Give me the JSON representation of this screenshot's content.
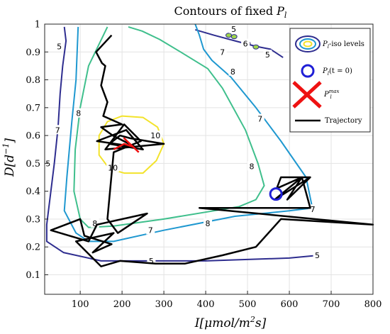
{
  "chart_data": {
    "type": "line",
    "title": "Contours of fixed P_l",
    "title_parts": {
      "prefix": "Contours of fixed ",
      "symbol": "P",
      "subscript": "l"
    },
    "xlabel": "I[μmol/m²s]",
    "xlabel_parts": {
      "main": "I[μmol/m",
      "sup": "2",
      "tail": "s]"
    },
    "ylabel": "D[d⁻¹]",
    "ylabel_parts": {
      "main": "D[d",
      "sup": "−1",
      "tail": "]"
    },
    "xlim": [
      15,
      800
    ],
    "ylim": [
      0.03,
      1.0
    ],
    "grid": true,
    "legend_position": "top-right",
    "x_ticks": [
      100,
      200,
      300,
      400,
      500,
      600,
      700,
      800
    ],
    "y_ticks": [
      0.1,
      0.2,
      0.3,
      0.4,
      0.5,
      0.6,
      0.7,
      0.8,
      0.9,
      1
    ],
    "x_tick_labels": [
      "100",
      "200",
      "300",
      "400",
      "500",
      "600",
      "700",
      "800"
    ],
    "y_tick_labels": [
      "0.1",
      "0.2",
      "0.3",
      "0.4",
      "0.5",
      "0.6",
      "0.7",
      "0.8",
      "0.9",
      "1"
    ],
    "contours": [
      {
        "level": 5,
        "color": "#2e2d8f",
        "points": [
          [
            62,
            0.99
          ],
          [
            66,
            0.94
          ],
          [
            58,
            0.85
          ],
          [
            52,
            0.75
          ],
          [
            47,
            0.63
          ],
          [
            38,
            0.5
          ],
          [
            20,
            0.28
          ],
          [
            20,
            0.22
          ],
          [
            60,
            0.18
          ],
          [
            150,
            0.15
          ],
          [
            400,
            0.15
          ],
          [
            500,
            0.155
          ],
          [
            600,
            0.16
          ],
          [
            670,
            0.17
          ]
        ]
      },
      {
        "level": 5,
        "color": "#2e2d8f",
        "points": [
          [
            375,
            0.98
          ],
          [
            420,
            0.96
          ],
          [
            470,
            0.94
          ],
          [
            520,
            0.92
          ],
          [
            555,
            0.91
          ],
          [
            585,
            0.88
          ]
        ]
      },
      {
        "level": 7,
        "color": "#1f98d0",
        "points": [
          [
            95,
            0.99
          ],
          [
            90,
            0.8
          ],
          [
            80,
            0.65
          ],
          [
            68,
            0.45
          ],
          [
            62,
            0.33
          ],
          [
            90,
            0.25
          ],
          [
            120,
            0.22
          ],
          [
            180,
            0.22
          ],
          [
            300,
            0.26
          ],
          [
            470,
            0.31
          ],
          [
            600,
            0.33
          ],
          [
            655,
            0.34
          ],
          [
            640,
            0.45
          ],
          [
            580,
            0.58
          ],
          [
            520,
            0.7
          ],
          [
            460,
            0.81
          ],
          [
            415,
            0.87
          ],
          [
            395,
            0.91
          ],
          [
            385,
            0.96
          ],
          [
            375,
            1.0
          ]
        ]
      },
      {
        "level": 8,
        "color": "#3fbf8c",
        "points": [
          [
            165,
            0.99
          ],
          [
            120,
            0.85
          ],
          [
            100,
            0.7
          ],
          [
            88,
            0.55
          ],
          [
            85,
            0.4
          ],
          [
            100,
            0.3
          ],
          [
            120,
            0.27
          ],
          [
            180,
            0.275
          ],
          [
            300,
            0.3
          ],
          [
            480,
            0.345
          ],
          [
            520,
            0.37
          ],
          [
            540,
            0.42
          ],
          [
            525,
            0.5
          ],
          [
            495,
            0.62
          ],
          [
            440,
            0.77
          ],
          [
            405,
            0.84
          ],
          [
            340,
            0.9
          ],
          [
            290,
            0.945
          ],
          [
            248,
            0.975
          ],
          [
            215,
            0.99
          ]
        ]
      },
      {
        "level": 10,
        "color": "#f3e32b",
        "points": [
          [
            200,
            0.67
          ],
          [
            250,
            0.665
          ],
          [
            285,
            0.63
          ],
          [
            300,
            0.57
          ],
          [
            282,
            0.51
          ],
          [
            250,
            0.465
          ],
          [
            205,
            0.465
          ],
          [
            170,
            0.48
          ],
          [
            145,
            0.53
          ],
          [
            145,
            0.6
          ],
          [
            165,
            0.65
          ],
          [
            200,
            0.67
          ]
        ]
      }
    ],
    "contour_labels": [
      {
        "text": "5",
        "x": 50,
        "y": 0.92
      },
      {
        "text": "5",
        "x": 23,
        "y": 0.5
      },
      {
        "text": "5",
        "x": 270,
        "y": 0.15
      },
      {
        "text": "5",
        "x": 667,
        "y": 0.17
      },
      {
        "text": "5",
        "x": 467,
        "y": 0.982
      },
      {
        "text": "5",
        "x": 548,
        "y": 0.89
      },
      {
        "text": "6",
        "x": 495,
        "y": 0.93
      },
      {
        "text": "7",
        "x": 46,
        "y": 0.62
      },
      {
        "text": "7",
        "x": 268,
        "y": 0.26
      },
      {
        "text": "7",
        "x": 440,
        "y": 0.9
      },
      {
        "text": "7",
        "x": 656,
        "y": 0.335
      },
      {
        "text": "7",
        "x": 530,
        "y": 0.66
      },
      {
        "text": "8",
        "x": 96,
        "y": 0.68
      },
      {
        "text": "8",
        "x": 405,
        "y": 0.285
      },
      {
        "text": "8",
        "x": 465,
        "y": 0.83
      },
      {
        "text": "8",
        "x": 135,
        "y": 0.285
      },
      {
        "text": "8",
        "x": 510,
        "y": 0.49
      },
      {
        "text": "10",
        "x": 280,
        "y": 0.6
      },
      {
        "text": "10",
        "x": 178,
        "y": 0.485
      }
    ],
    "trajectory": [
      [
        175,
        0.96
      ],
      [
        138,
        0.9
      ],
      [
        152,
        0.86
      ],
      [
        160,
        0.85
      ],
      [
        150,
        0.78
      ],
      [
        165,
        0.72
      ],
      [
        155,
        0.67
      ],
      [
        200,
        0.64
      ],
      [
        150,
        0.63
      ],
      [
        178,
        0.6
      ],
      [
        230,
        0.56
      ],
      [
        140,
        0.58
      ],
      [
        210,
        0.62
      ],
      [
        250,
        0.55
      ],
      [
        170,
        0.57
      ],
      [
        195,
        0.6
      ],
      [
        220,
        0.59
      ],
      [
        300,
        0.57
      ],
      [
        160,
        0.55
      ],
      [
        205,
        0.64
      ],
      [
        245,
        0.58
      ],
      [
        180,
        0.54
      ],
      [
        170,
        0.38
      ],
      [
        165,
        0.3
      ],
      [
        190,
        0.25
      ],
      [
        260,
        0.32
      ],
      [
        140,
        0.28
      ],
      [
        120,
        0.22
      ],
      [
        30,
        0.26
      ],
      [
        100,
        0.3
      ],
      [
        110,
        0.24
      ],
      [
        175,
        0.21
      ],
      [
        130,
        0.18
      ],
      [
        180,
        0.25
      ],
      [
        90,
        0.22
      ],
      [
        150,
        0.13
      ],
      [
        195,
        0.15
      ],
      [
        280,
        0.14
      ],
      [
        350,
        0.14
      ],
      [
        440,
        0.17
      ],
      [
        520,
        0.2
      ],
      [
        580,
        0.3
      ],
      [
        800,
        0.28
      ],
      [
        385,
        0.34
      ],
      [
        650,
        0.34
      ],
      [
        630,
        0.45
      ],
      [
        570,
        0.41
      ],
      [
        580,
        0.45
      ],
      [
        650,
        0.45
      ],
      [
        565,
        0.37
      ],
      [
        630,
        0.45
      ],
      [
        595,
        0.37
      ],
      [
        650,
        0.45
      ]
    ],
    "pmax_segment": [
      [
        180,
        0.55
      ],
      [
        205,
        0.57
      ],
      [
        225,
        0.56
      ],
      [
        205,
        0.59
      ],
      [
        240,
        0.54
      ]
    ],
    "start_marker": {
      "x": 568,
      "y": 0.39
    },
    "pmax_marker": {
      "x": 215,
      "y": 0.6
    },
    "legend": {
      "items": [
        {
          "key": "iso",
          "label_main": "P",
          "label_sub": "l",
          "label_tail": "-iso levels"
        },
        {
          "key": "start",
          "label_main": "P",
          "label_sub": "l",
          "label_tail": "(t = 0)"
        },
        {
          "key": "max",
          "label_main": "P",
          "label_sub": "l",
          "label_sup": "max"
        },
        {
          "key": "traj",
          "label_main": "Trajectory"
        }
      ]
    }
  }
}
